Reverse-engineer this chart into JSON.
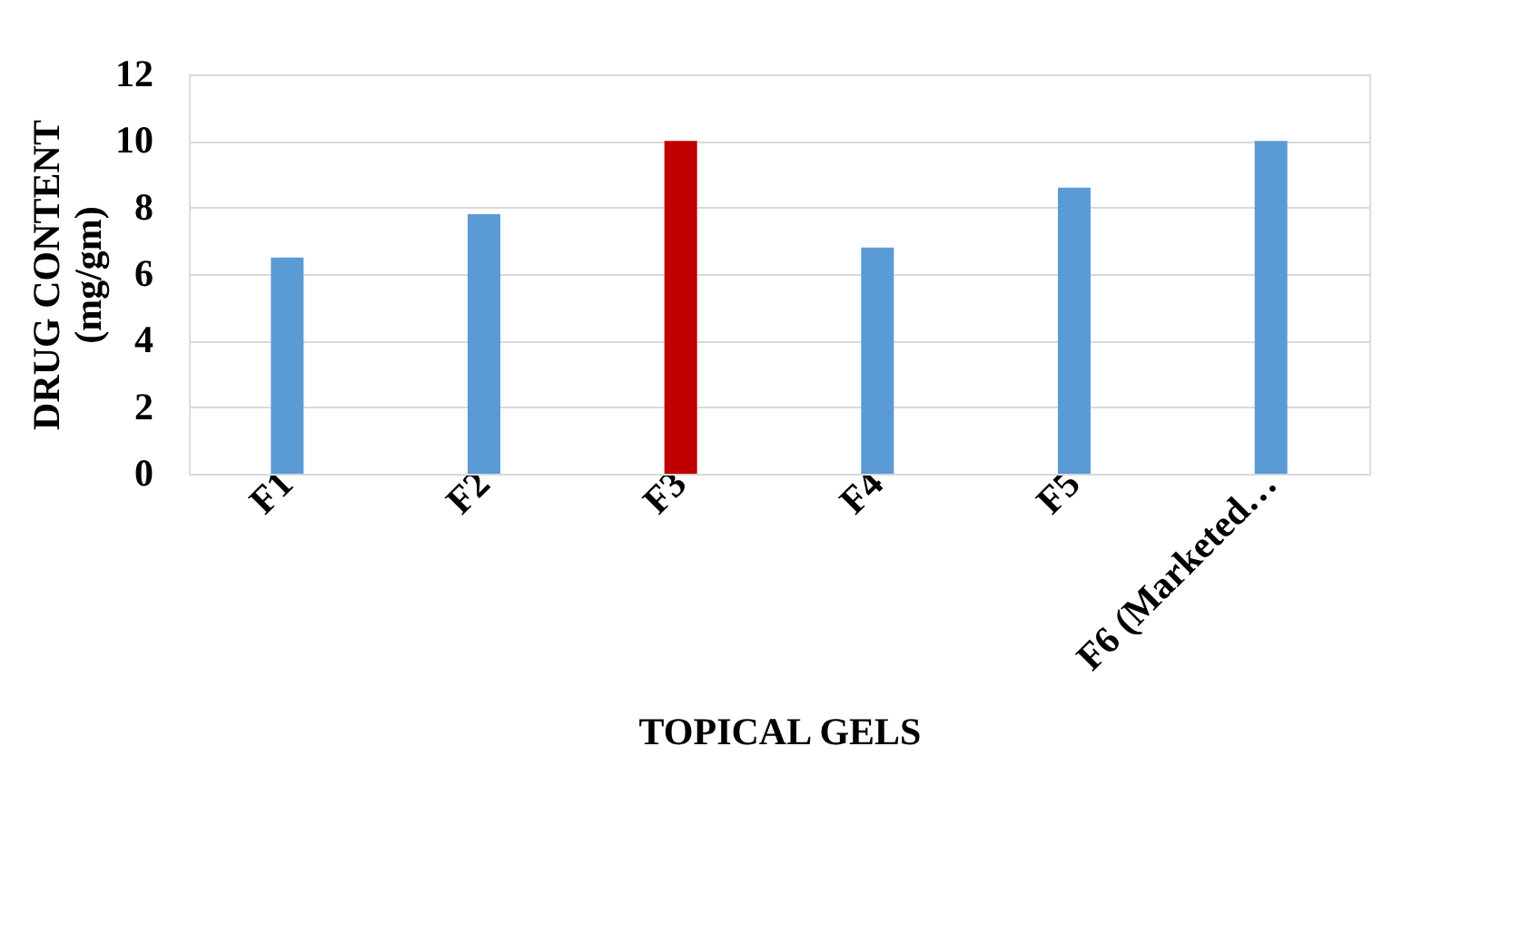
{
  "chart_data": {
    "type": "bar",
    "xlabel": "TOPICAL GELS",
    "ylabel": "DRUG  CONTENT\n(mg/gm)",
    "categories": [
      "F1",
      "F2",
      "F3",
      "F4",
      "F5",
      "F6 (Marketed…"
    ],
    "values": [
      6.5,
      7.8,
      10.0,
      6.8,
      8.6,
      10.0
    ],
    "colors": [
      "#5b9bd5",
      "#5b9bd5",
      "#c00000",
      "#5b9bd5",
      "#5b9bd5",
      "#5b9bd5"
    ],
    "ylim": [
      0,
      12
    ],
    "yticks": [
      0,
      2,
      4,
      6,
      8,
      10,
      12
    ],
    "grid": "y"
  }
}
